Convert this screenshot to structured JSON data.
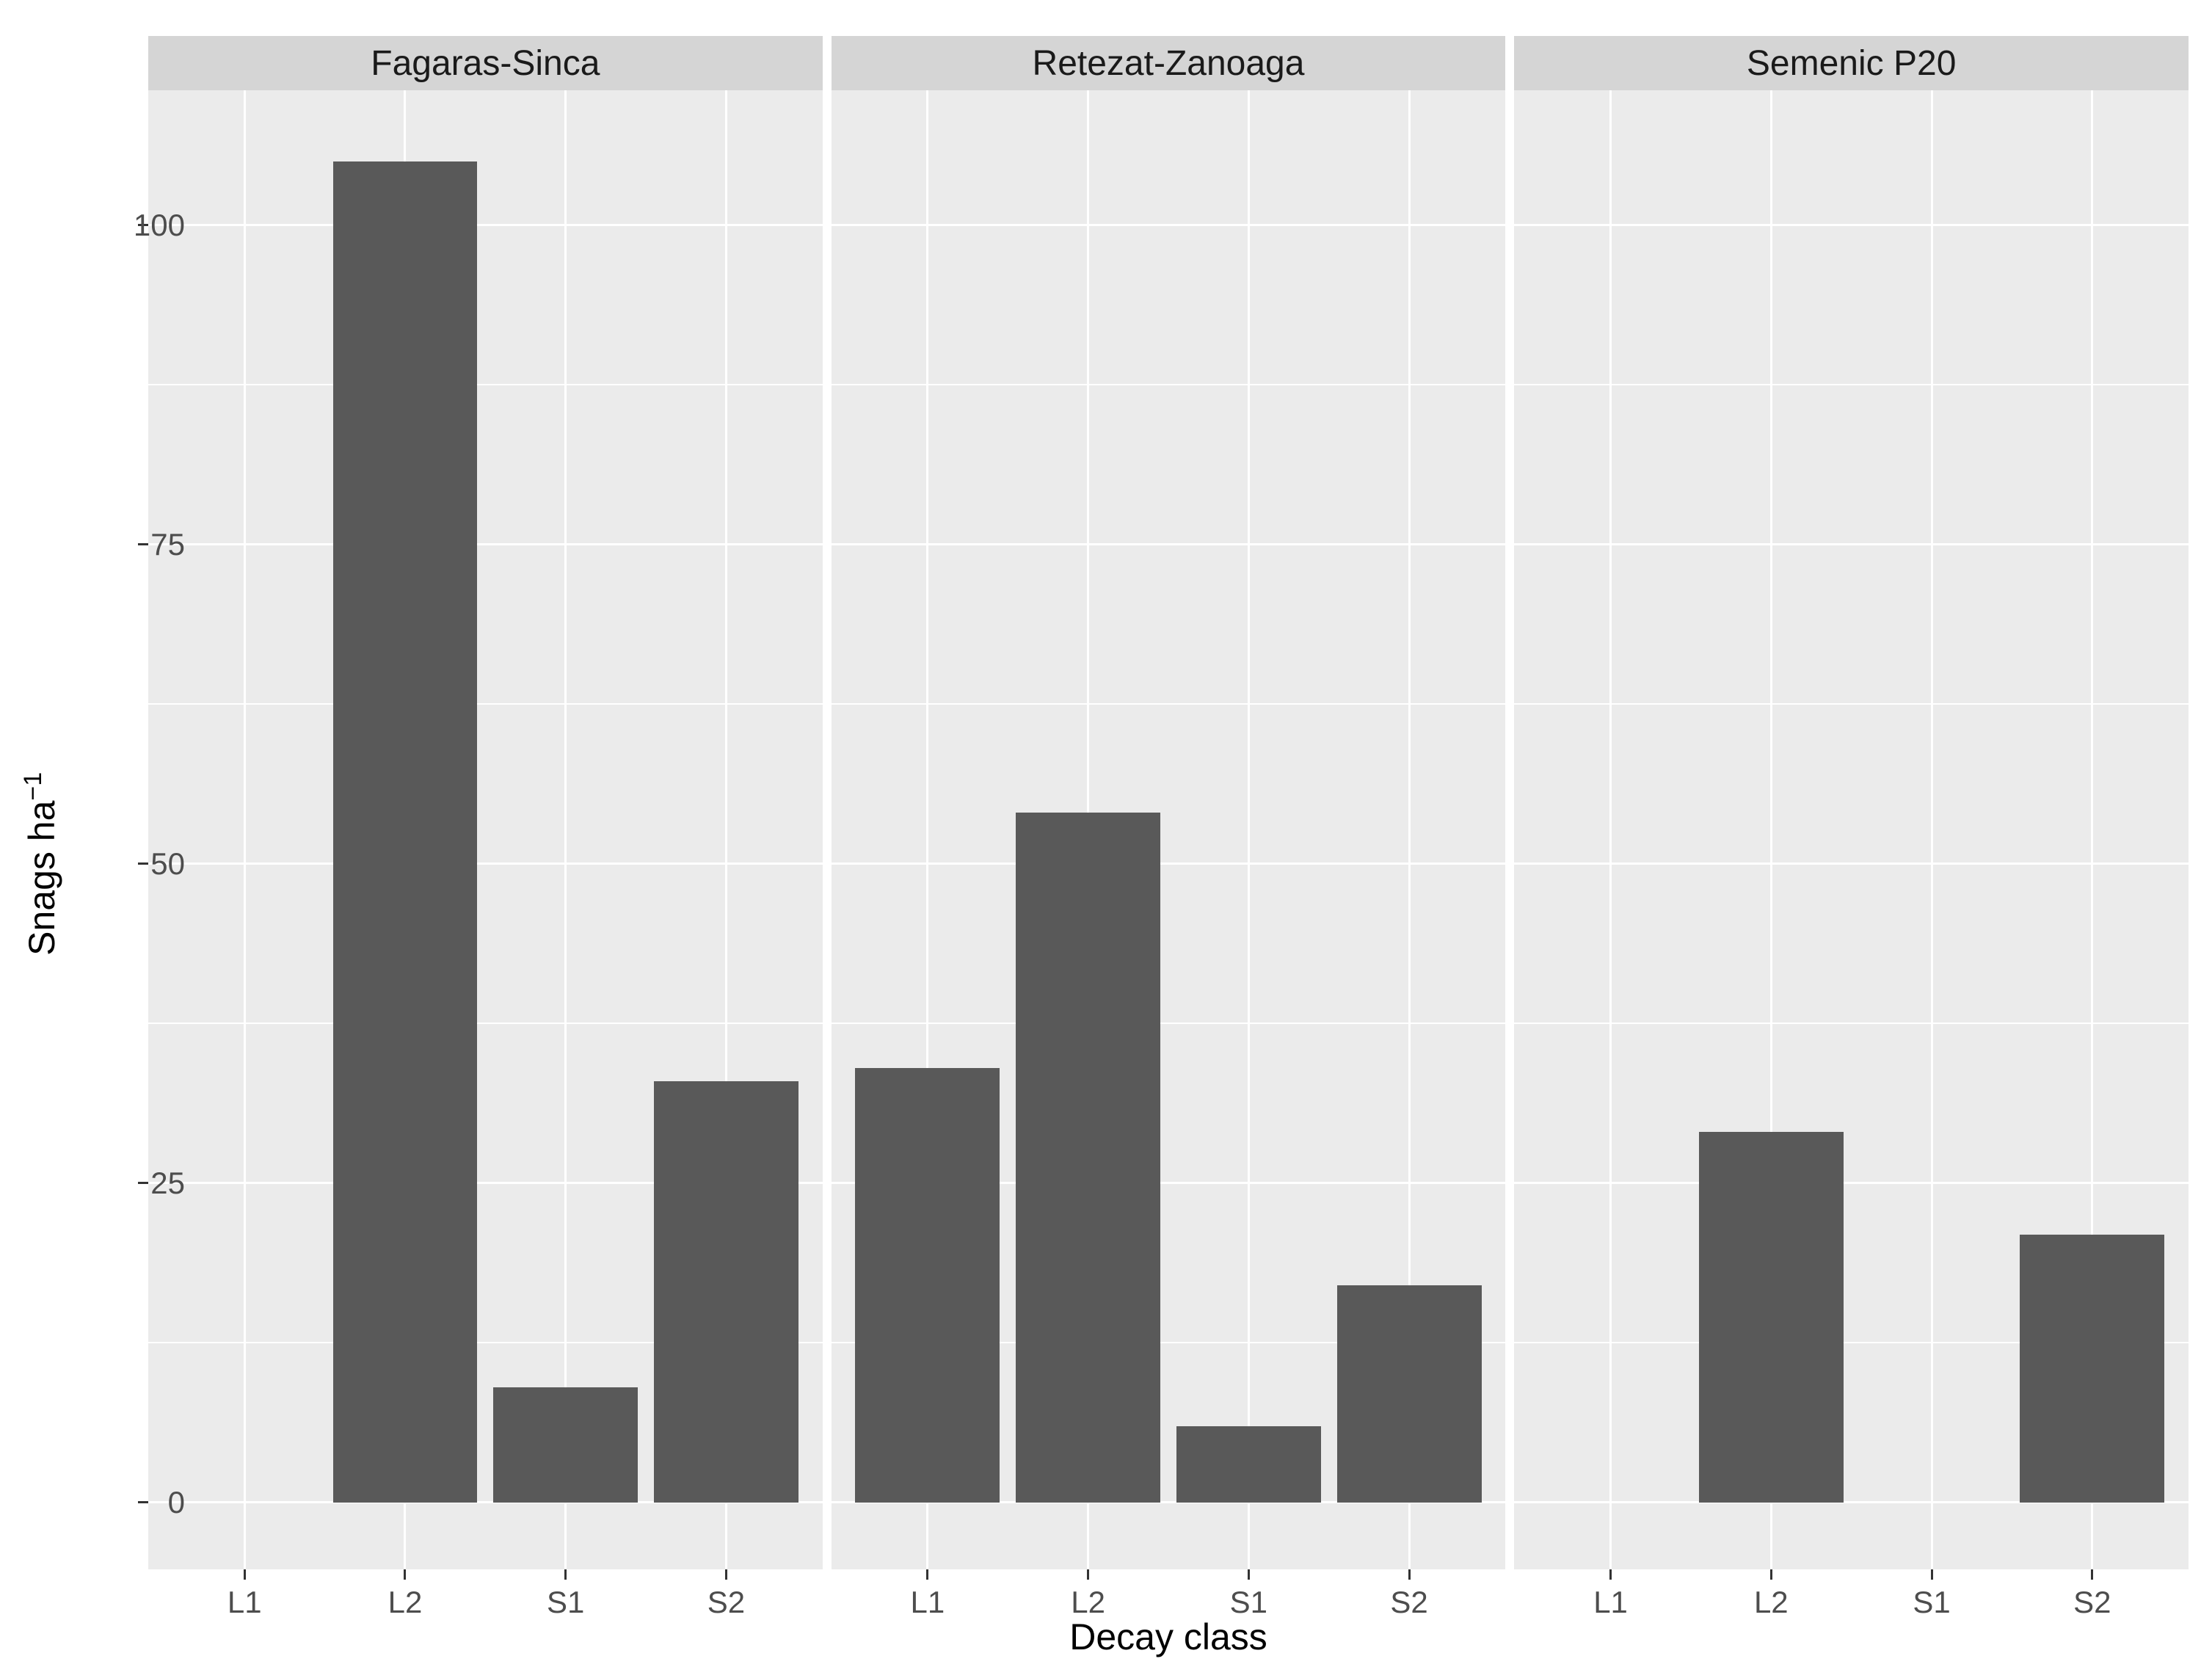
{
  "chart_data": {
    "type": "bar",
    "facets": [
      {
        "label": "Fagaras-Sinca",
        "values": [
          0,
          105,
          9,
          33
        ]
      },
      {
        "label": "Retezat-Zanoaga",
        "values": [
          34,
          54,
          6,
          17
        ]
      },
      {
        "label": "Semenic P20",
        "values": [
          0,
          29,
          0,
          21
        ]
      }
    ],
    "categories": [
      "L1",
      "L2",
      "S1",
      "S2"
    ],
    "xlabel": "Decay class",
    "ylabel_text": "Snags ha",
    "ylabel_superscript": "−1",
    "yticks": [
      0,
      25,
      50,
      75,
      100
    ],
    "yticks_minor": [
      12.5,
      37.5,
      62.5,
      87.5
    ],
    "ylim": [
      0,
      110
    ],
    "grid": true,
    "legend": "none",
    "colors": {
      "bar": "#595959",
      "panel_bg": "#ebebeb",
      "strip_bg": "#d5d5d5",
      "grid": "#ffffff",
      "tick_label": "#4d4d4d",
      "axis_title": "#000000"
    }
  }
}
